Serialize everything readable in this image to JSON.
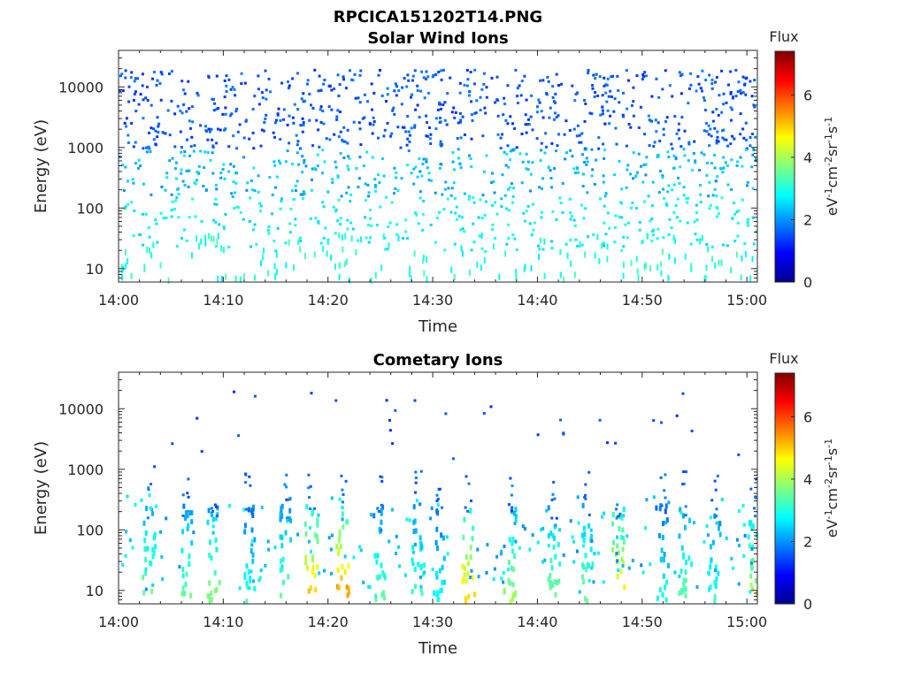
{
  "figure_title": "RPCICA151202T14.PNG",
  "chart_data": [
    {
      "type": "heatmap",
      "title": "Solar Wind Ions",
      "xlabel": "Time",
      "ylabel": "Energy (eV)",
      "y_scale": "log",
      "ylim": [
        6,
        40000
      ],
      "xlim": [
        "14:00",
        "15:01"
      ],
      "x_ticks": [
        "14:00",
        "14:10",
        "14:20",
        "14:30",
        "14:40",
        "14:50",
        "15:00"
      ],
      "y_ticks": [
        10,
        100,
        1000,
        10000
      ],
      "y_tick_labels": [
        "10",
        "100",
        "1000",
        "10000"
      ],
      "colorbar": {
        "title": "Flux",
        "label": "eV-1cm-2sr-1s-1",
        "range": [
          0,
          7.4
        ],
        "ticks": [
          0,
          2,
          4,
          6
        ],
        "tick_labels": [
          "0",
          "2",
          "4",
          "6"
        ],
        "colormap": "jet"
      },
      "description_of_data": "sparse scattered counts; flux about 1-2 above 1000 eV, about 2-3 between 10 and 300 eV"
    },
    {
      "type": "heatmap",
      "title": "Cometary Ions",
      "xlabel": "Time",
      "ylabel": "Energy (eV)",
      "y_scale": "log",
      "ylim": [
        6,
        40000
      ],
      "xlim": [
        "14:00",
        "15:01"
      ],
      "x_ticks": [
        "14:00",
        "14:10",
        "14:20",
        "14:30",
        "14:40",
        "14:50",
        "15:00"
      ],
      "y_ticks": [
        10,
        100,
        1000,
        10000
      ],
      "y_tick_labels": [
        "10",
        "100",
        "1000",
        "10000"
      ],
      "colorbar": {
        "title": "Flux",
        "label": "eV-1cm-2sr-1s-1",
        "range": [
          0,
          7.4
        ],
        "ticks": [
          0,
          2,
          4,
          6
        ],
        "tick_labels": [
          "0",
          "2",
          "4",
          "6"
        ],
        "colormap": "jet"
      },
      "bursts": [
        {
          "time": "14:02.8",
          "flux": 3.8
        },
        {
          "time": "14:06.3",
          "flux": 3.6
        },
        {
          "time": "14:09.0",
          "flux": 3.8
        },
        {
          "time": "14:12.3",
          "flux": 3.2
        },
        {
          "time": "14:15.8",
          "flux": 3.6
        },
        {
          "time": "14:18.3",
          "flux": 5.2
        },
        {
          "time": "14:21.3",
          "flux": 5.6
        },
        {
          "time": "14:24.8",
          "flux": 3.4
        },
        {
          "time": "14:28.5",
          "flux": 3.4
        },
        {
          "time": "14:30.5",
          "flux": 3.0
        },
        {
          "time": "14:33.3",
          "flux": 5.0
        },
        {
          "time": "14:37.3",
          "flux": 4.0
        },
        {
          "time": "14:41.5",
          "flux": 3.8
        },
        {
          "time": "14:44.6",
          "flux": 3.8
        },
        {
          "time": "14:47.6",
          "flux": 5.0
        },
        {
          "time": "14:51.8",
          "flux": 3.0
        },
        {
          "time": "14:54.0",
          "flux": 3.6
        },
        {
          "time": "14:56.8",
          "flux": 3.2
        },
        {
          "time": "15:00.5",
          "flux": 4.2
        }
      ]
    }
  ]
}
